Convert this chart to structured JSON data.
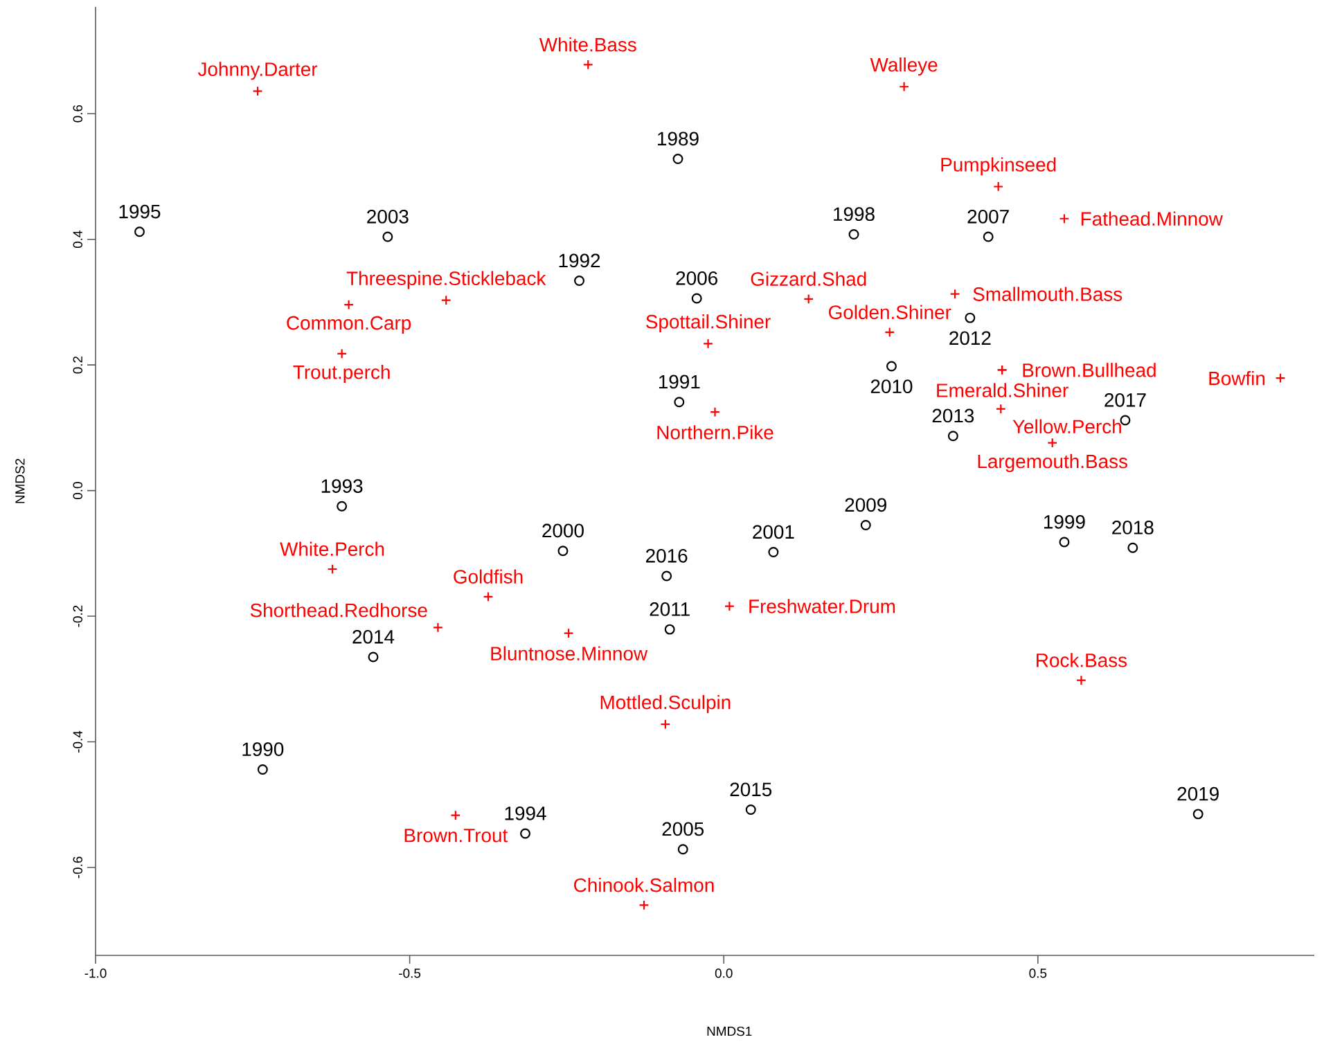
{
  "chart_data": {
    "type": "scatter",
    "xlabel": "NMDS1",
    "ylabel": "NMDS2",
    "xlim": [
      -1.0,
      0.94
    ],
    "ylim": [
      -0.74,
      0.77
    ],
    "xticks": [
      {
        "value": -1.0,
        "label": "-1.0"
      },
      {
        "value": -0.5,
        "label": "-0.5"
      },
      {
        "value": 0.0,
        "label": "0.0"
      },
      {
        "value": 0.5,
        "label": "0.5"
      }
    ],
    "yticks": [
      {
        "value": -0.6,
        "label": "-0.6"
      },
      {
        "value": -0.4,
        "label": "-0.4"
      },
      {
        "value": -0.2,
        "label": "-0.2"
      },
      {
        "value": 0.0,
        "label": "0.0"
      },
      {
        "value": 0.2,
        "label": "0.2"
      },
      {
        "value": 0.4,
        "label": "0.4"
      },
      {
        "value": 0.6,
        "label": "0.6"
      }
    ],
    "series": [
      {
        "color": "#000000",
        "marker": "circle",
        "x": [
          -0.93,
          -0.535,
          -0.073,
          -0.23,
          -0.043,
          0.207,
          0.421,
          0.392,
          0.267,
          -0.071,
          0.639,
          0.365,
          -0.608,
          0.226,
          0.542,
          0.651,
          -0.256,
          0.079,
          -0.091,
          -0.086,
          -0.558,
          -0.734,
          0.043,
          -0.316,
          -0.065,
          0.755
        ],
        "values": [
          0.412,
          0.404,
          0.528,
          0.334,
          0.306,
          0.408,
          0.404,
          0.275,
          0.198,
          0.141,
          0.112,
          0.087,
          -0.025,
          -0.055,
          -0.082,
          -0.091,
          -0.096,
          -0.098,
          -0.136,
          -0.221,
          -0.265,
          -0.444,
          -0.508,
          -0.546,
          -0.571,
          -0.515
        ]
      },
      {
        "color": "#ff0000",
        "marker": "cross",
        "x": [
          -0.742,
          -0.216,
          0.287,
          0.437,
          0.542,
          -0.442,
          -0.597,
          -0.608,
          0.135,
          0.264,
          0.368,
          -0.025,
          0.443,
          0.443,
          0.886,
          0.441,
          0.523,
          -0.014,
          -0.623,
          -0.375,
          -0.455,
          -0.247,
          0.009,
          -0.093,
          0.569,
          -0.427,
          -0.127
        ],
        "values": [
          0.636,
          0.678,
          0.643,
          0.484,
          0.433,
          0.303,
          0.296,
          0.218,
          0.305,
          0.252,
          0.313,
          0.234,
          0.192,
          0.192,
          0.179,
          0.13,
          0.076,
          0.125,
          -0.125,
          -0.169,
          -0.218,
          -0.227,
          -0.184,
          -0.372,
          -0.302,
          -0.517,
          -0.66
        ]
      }
    ],
    "annotations": [
      {
        "text": "1995",
        "x": -0.93,
        "y": 0.412
      },
      {
        "text": "2003",
        "x": -0.535,
        "y": 0.404
      },
      {
        "text": "1989",
        "x": -0.073,
        "y": 0.528
      },
      {
        "text": "1992",
        "x": -0.23,
        "y": 0.334
      },
      {
        "text": "2006",
        "x": -0.043,
        "y": 0.306
      },
      {
        "text": "1998",
        "x": 0.207,
        "y": 0.408
      },
      {
        "text": "2007",
        "x": 0.421,
        "y": 0.404
      },
      {
        "text": "2012",
        "x": 0.392,
        "y": 0.275
      },
      {
        "text": "2010",
        "x": 0.267,
        "y": 0.198
      },
      {
        "text": "1991",
        "x": -0.071,
        "y": 0.141
      },
      {
        "text": "2017",
        "x": 0.639,
        "y": 0.112
      },
      {
        "text": "2013",
        "x": 0.365,
        "y": 0.087
      },
      {
        "text": "1993",
        "x": -0.608,
        "y": -0.025
      },
      {
        "text": "2009",
        "x": 0.226,
        "y": -0.055
      },
      {
        "text": "1999",
        "x": 0.542,
        "y": -0.082
      },
      {
        "text": "2018",
        "x": 0.651,
        "y": -0.091
      },
      {
        "text": "2000",
        "x": -0.256,
        "y": -0.096
      },
      {
        "text": "2001",
        "x": 0.079,
        "y": -0.098
      },
      {
        "text": "2016",
        "x": -0.091,
        "y": -0.136
      },
      {
        "text": "2011",
        "x": -0.086,
        "y": -0.221
      },
      {
        "text": "2014",
        "x": -0.558,
        "y": -0.265
      },
      {
        "text": "1990",
        "x": -0.734,
        "y": -0.444
      },
      {
        "text": "2015",
        "x": 0.043,
        "y": -0.508
      },
      {
        "text": "1994",
        "x": -0.316,
        "y": -0.546
      },
      {
        "text": "2005",
        "x": -0.065,
        "y": -0.571
      },
      {
        "text": "2019",
        "x": 0.755,
        "y": -0.515
      },
      {
        "text": "Johnny.Darter",
        "x": -0.742,
        "y": 0.636
      },
      {
        "text": "White.Bass",
        "x": -0.216,
        "y": 0.678
      },
      {
        "text": "Walleye",
        "x": 0.287,
        "y": 0.643
      },
      {
        "text": "Pumpkinseed",
        "x": 0.437,
        "y": 0.484
      },
      {
        "text": "Fathead.Minnow",
        "x": 0.542,
        "y": 0.433
      },
      {
        "text": "Threespine.Stickleback",
        "x": -0.442,
        "y": 0.303
      },
      {
        "text": "Common.Carp",
        "x": -0.597,
        "y": 0.296
      },
      {
        "text": "Trout.perch",
        "x": -0.608,
        "y": 0.218
      },
      {
        "text": "Gizzard.Shad",
        "x": 0.135,
        "y": 0.305
      },
      {
        "text": "Golden.Shiner",
        "x": 0.264,
        "y": 0.252
      },
      {
        "text": "Smallmouth.Bass",
        "x": 0.368,
        "y": 0.313
      },
      {
        "text": "Spottail.Shiner",
        "x": -0.025,
        "y": 0.234
      },
      {
        "text": "Emerald.Shiner",
        "x": 0.443,
        "y": 0.192
      },
      {
        "text": "Brown.Bullhead",
        "x": 0.443,
        "y": 0.192
      },
      {
        "text": "Bowfin",
        "x": 0.886,
        "y": 0.179
      },
      {
        "text": "Yellow.Perch",
        "x": 0.441,
        "y": 0.13
      },
      {
        "text": "Largemouth.Bass",
        "x": 0.523,
        "y": 0.076
      },
      {
        "text": "Northern.Pike",
        "x": -0.014,
        "y": 0.125
      },
      {
        "text": "White.Perch",
        "x": -0.623,
        "y": -0.125
      },
      {
        "text": "Goldfish",
        "x": -0.375,
        "y": -0.169
      },
      {
        "text": "Shorthead.Redhorse",
        "x": -0.455,
        "y": -0.218
      },
      {
        "text": "Bluntnose.Minnow",
        "x": -0.247,
        "y": -0.227
      },
      {
        "text": "Freshwater.Drum",
        "x": 0.009,
        "y": -0.184
      },
      {
        "text": "Mottled.Sculpin",
        "x": -0.093,
        "y": -0.372
      },
      {
        "text": "Rock.Bass",
        "x": 0.569,
        "y": -0.302
      },
      {
        "text": "Brown.Trout",
        "x": -0.427,
        "y": -0.517
      },
      {
        "text": "Chinook.Salmon",
        "x": -0.127,
        "y": -0.66
      }
    ]
  }
}
